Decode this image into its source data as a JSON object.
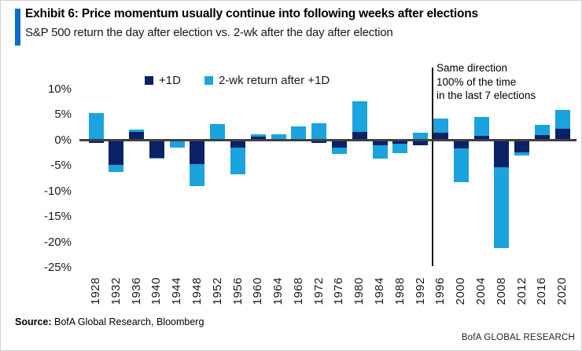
{
  "header": {
    "title": "Exhibit 6: Price momentum usually continue into following weeks after elections",
    "subtitle": "S&P 500 return the day after election vs. 2-wk after the day after election",
    "accent_color": "#0d6cc8"
  },
  "chart_data": {
    "type": "bar",
    "stacked": true,
    "categories": [
      "1928",
      "1932",
      "1936",
      "1940",
      "1944",
      "1948",
      "1952",
      "1956",
      "1960",
      "1964",
      "1968",
      "1972",
      "1976",
      "1980",
      "1984",
      "1988",
      "1992",
      "1996",
      "2000",
      "2004",
      "2008",
      "2012",
      "2016",
      "2020"
    ],
    "series": [
      {
        "name": "+1D",
        "color": "#0a2166",
        "values": [
          -0.5,
          -4.8,
          1.7,
          -3.4,
          -0.2,
          -4.6,
          0.3,
          -1.5,
          0.7,
          -0.2,
          0.3,
          -0.5,
          -1.5,
          1.7,
          -0.9,
          -0.6,
          -0.9,
          1.5,
          -1.6,
          0.9,
          -5.3,
          -2.4,
          1.1,
          2.2
        ]
      },
      {
        "name": "2-wk return after +1D",
        "color": "#1ba3dd",
        "values": [
          5.3,
          -1.4,
          0.4,
          -0.2,
          -1.2,
          -4.3,
          2.9,
          -5.2,
          0.5,
          1.2,
          2.5,
          3.3,
          -1.1,
          5.9,
          -2.7,
          -1.9,
          1.5,
          2.7,
          -6.6,
          3.6,
          -15.8,
          -0.5,
          2.0,
          3.7
        ]
      }
    ],
    "y_tick_labels": [
      "10%",
      "5%",
      "0%",
      "-5%",
      "-10%",
      "-15%",
      "-20%",
      "-25%"
    ],
    "ylim": [
      -25,
      10
    ],
    "grid": false,
    "legend_position": "top",
    "axis_color": "#404040",
    "annotation": {
      "lines": [
        "Same direction",
        "100% of the time",
        "in the last 7 elections"
      ],
      "divider_after_category": "1992"
    },
    "title": "Exhibit 6: Price momentum usually continue into following weeks after elections",
    "xlabel": "",
    "ylabel": ""
  },
  "footer": {
    "source_label": "Source:",
    "source_text": " BofA Global Research, Bloomberg",
    "brand": "BofA GLOBAL RESEARCH"
  }
}
